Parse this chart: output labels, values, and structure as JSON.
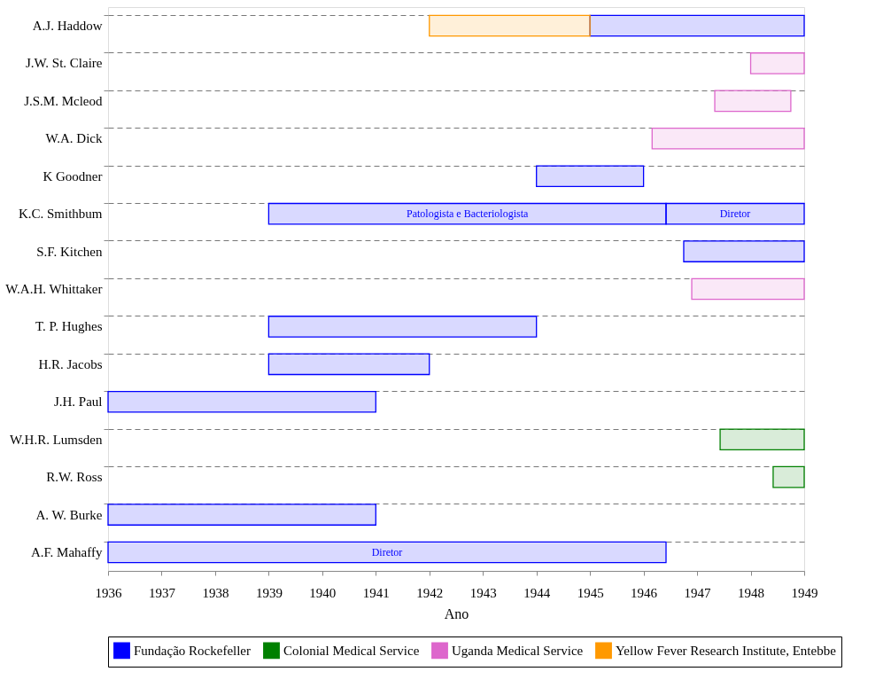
{
  "chart_data": {
    "type": "bar",
    "orientation": "horizontal",
    "xlabel": "Ano",
    "categories": [
      "A.J. Haddow",
      "J.W. St. Claire",
      "J.S.M. Mcleod",
      "W.A. Dick",
      "K Goodner",
      "K.C. Smithbum",
      "S.F. Kitchen",
      "W.A.H. Whittaker",
      "T. P. Hughes",
      "H.R. Jacobs",
      "J.H. Paul",
      "W.H.R. Lumsden",
      "R.W. Ross",
      "A. W. Burke",
      "A.F. Mahaffy"
    ],
    "series": [
      {
        "name": "Fundação Rockefeller",
        "color": "#0000ff",
        "base": [
          1945,
          null,
          null,
          null,
          1944,
          1939,
          1946.75,
          null,
          1939,
          1939,
          1936,
          null,
          null,
          1936,
          1936
        ],
        "values": [
          4,
          null,
          null,
          null,
          2,
          7.42,
          2.25,
          null,
          5,
          3,
          5,
          null,
          null,
          5,
          10.42
        ],
        "value_labels": [
          null,
          null,
          null,
          null,
          null,
          "Patologista e Bacteriologista",
          null,
          null,
          null,
          null,
          null,
          null,
          null,
          null,
          "Diretor"
        ]
      },
      {
        "color": "#0000ff",
        "base": [
          null,
          null,
          null,
          null,
          null,
          1946.42,
          null,
          null,
          null,
          null,
          null,
          null,
          null,
          null,
          null
        ],
        "values": [
          null,
          null,
          null,
          null,
          null,
          2.58,
          null,
          null,
          null,
          null,
          null,
          null,
          null,
          null,
          null
        ],
        "value_labels": [
          null,
          null,
          null,
          null,
          null,
          "Diretor",
          null,
          null,
          null,
          null,
          null,
          null,
          null,
          null,
          null
        ]
      },
      {
        "name": "Colonial Medical Service",
        "color": "#008000",
        "base": [
          null,
          null,
          null,
          null,
          null,
          null,
          null,
          null,
          null,
          null,
          null,
          1947.43,
          1948.42,
          null,
          null
        ],
        "values": [
          null,
          null,
          null,
          null,
          null,
          null,
          null,
          null,
          null,
          null,
          null,
          1.57,
          0.58,
          null,
          null
        ]
      },
      {
        "name": "Uganda Medical Service",
        "color": "#dd66cc",
        "base": [
          null,
          1948,
          1947.33,
          1946.16,
          null,
          null,
          null,
          1946.9,
          null,
          null,
          null,
          null,
          null,
          null,
          null
        ],
        "values": [
          null,
          1,
          1.42,
          2.84,
          null,
          null,
          null,
          2.1,
          null,
          null,
          null,
          null,
          null,
          null,
          null
        ]
      },
      {
        "name": "Yellow Fever Research Institute, Entebbe",
        "color": "#ff9900",
        "base": [
          1942,
          null,
          null,
          null,
          null,
          null,
          null,
          null,
          null,
          null,
          null,
          null,
          null,
          null,
          null
        ],
        "values": [
          3,
          null,
          null,
          null,
          null,
          null,
          null,
          null,
          null,
          null,
          null,
          null,
          null,
          null,
          null
        ]
      }
    ],
    "xlim": [
      1936,
      1949
    ],
    "xticks": [
      1936,
      1937,
      1938,
      1939,
      1940,
      1941,
      1942,
      1943,
      1944,
      1945,
      1946,
      1947,
      1948,
      1949
    ],
    "grid": "y",
    "legend": "bottom"
  }
}
